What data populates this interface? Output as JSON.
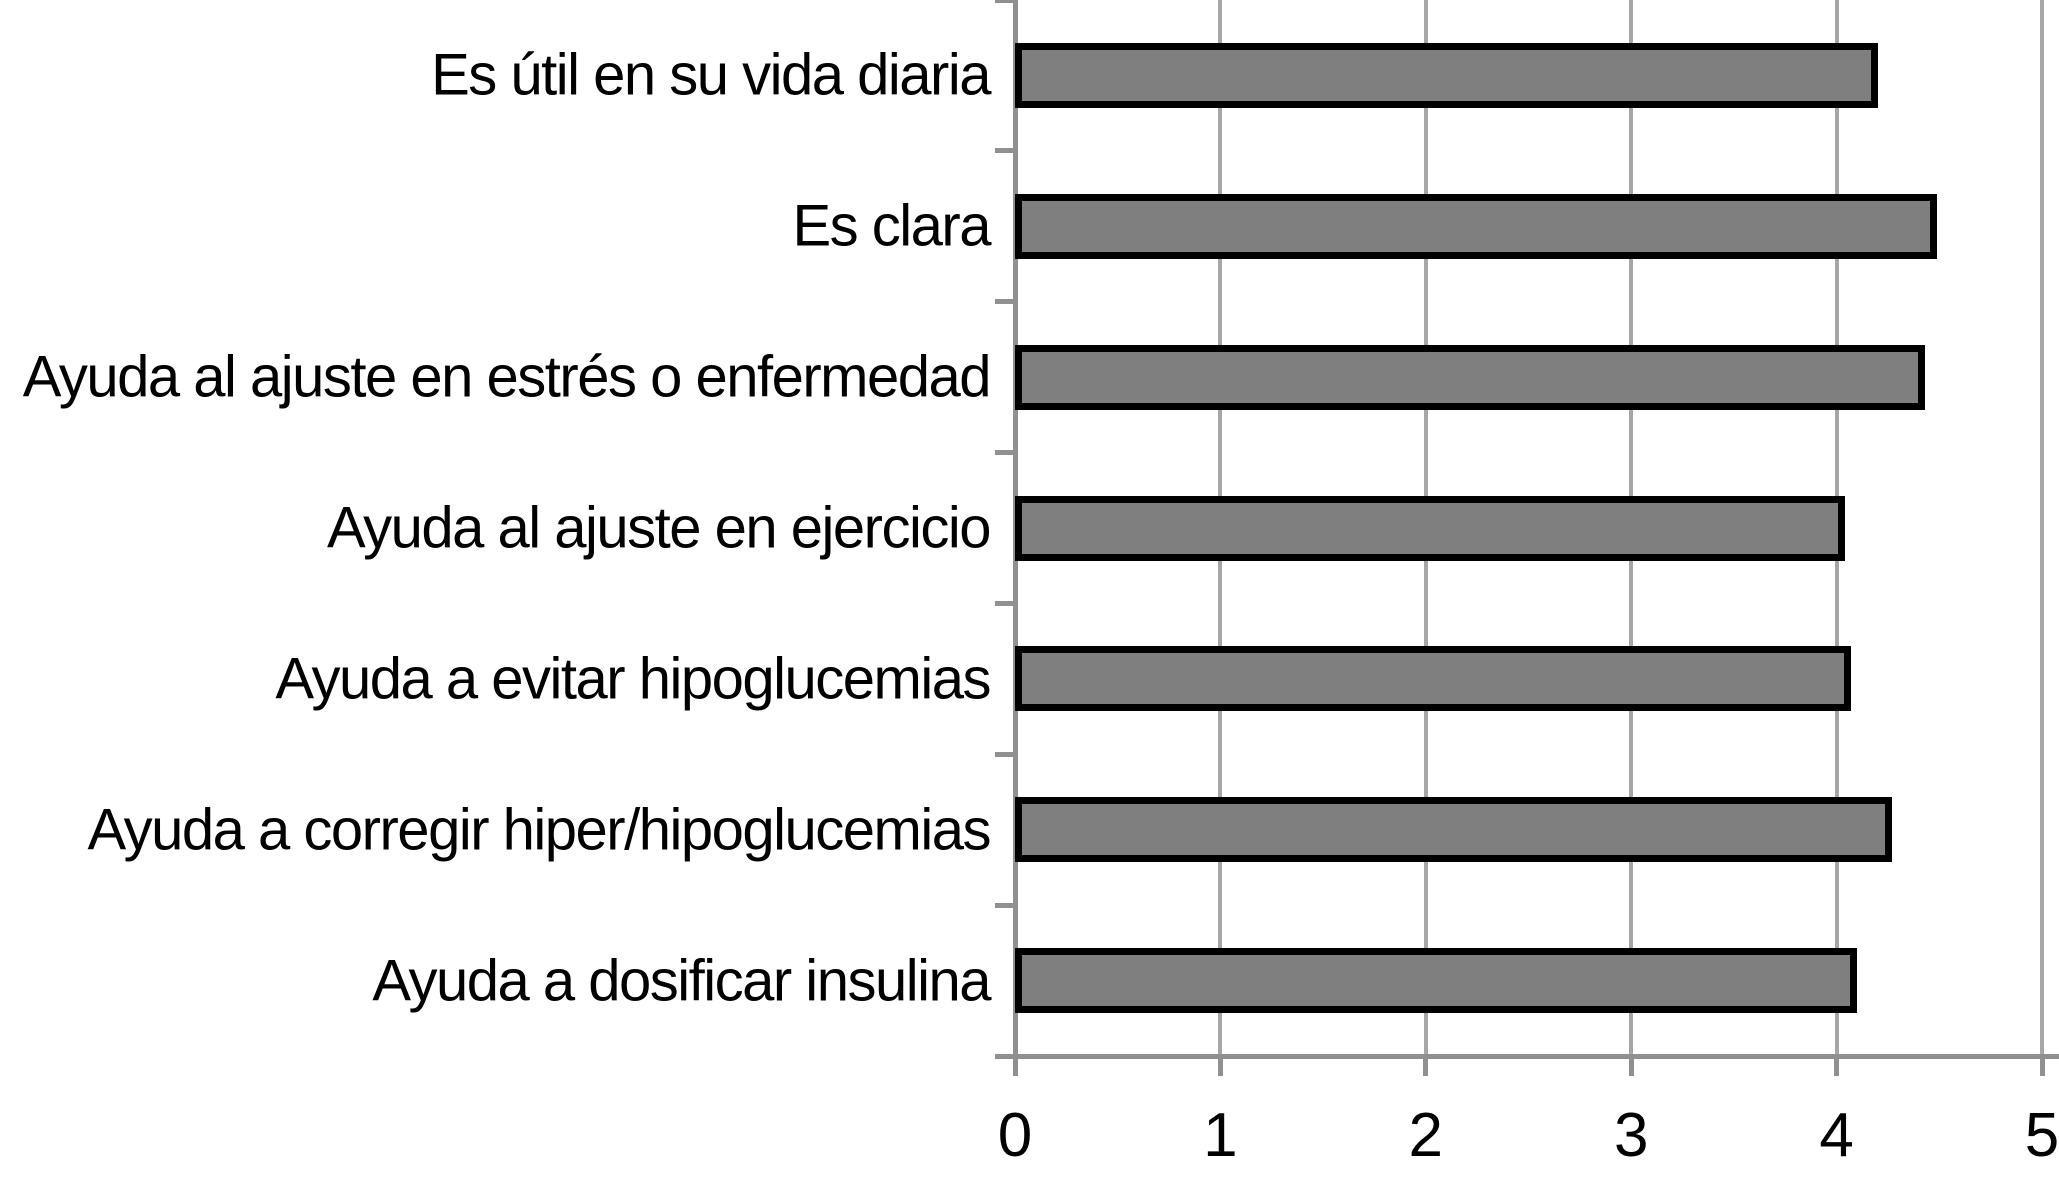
{
  "chart_data": {
    "type": "bar",
    "orientation": "horizontal",
    "title": "",
    "xlabel": "",
    "ylabel": "",
    "categories": [
      "Es útil en su vida diaria",
      "Es clara",
      "Ayuda al ajuste en estrés o enfermedad",
      "Ayuda al ajuste en ejercicio",
      "Ayuda a evitar hipoglucemias",
      "Ayuda a corregir hiper/hipoglucemias",
      "Ayuda a dosificar insulina"
    ],
    "values": [
      4.2,
      4.49,
      4.43,
      4.04,
      4.07,
      4.27,
      4.1
    ],
    "xlim": [
      0,
      5
    ],
    "x_ticks": [
      "0",
      "1",
      "2",
      "3",
      "4",
      "5"
    ],
    "grid": "vertical-gridlines-on",
    "legend": "none",
    "colors": {
      "bar_fill": "#7f7f7f",
      "bar_border": "#000000",
      "gridline": "#a6a6a6",
      "axis": "#909090",
      "text": "#000000",
      "background": "#ffffff"
    }
  }
}
